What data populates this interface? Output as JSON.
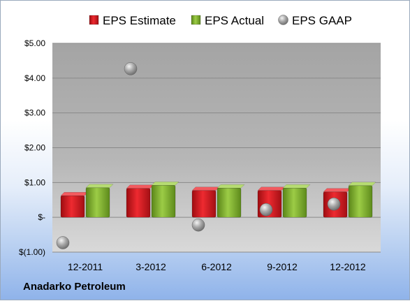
{
  "company": "Anadarko Petroleum",
  "chart_data": {
    "type": "bar",
    "categories": [
      "12-2011",
      "3-2012",
      "6-2012",
      "9-2012",
      "12-2012"
    ],
    "series": [
      {
        "name": "EPS Estimate",
        "values": [
          0.62,
          0.83,
          0.77,
          0.77,
          0.73
        ],
        "color": "#d6141c"
      },
      {
        "name": "EPS Actual",
        "values": [
          0.85,
          0.92,
          0.84,
          0.84,
          0.91
        ],
        "color": "#7dab2a"
      }
    ],
    "scatter_series": {
      "name": "EPS GAAP",
      "values": [
        -0.73,
        4.27,
        -0.22,
        0.22,
        0.38
      ],
      "color": "#a6a6a6"
    },
    "ylim": [
      -1,
      5
    ],
    "y_ticks": [
      5,
      4,
      3,
      2,
      1,
      0,
      -1
    ],
    "y_tick_labels": [
      "$5.00",
      "$4.00",
      "$3.00",
      "$2.00",
      "$1.00",
      "$-",
      "$(1.00)"
    ],
    "grid": true,
    "legend_position": "top"
  }
}
